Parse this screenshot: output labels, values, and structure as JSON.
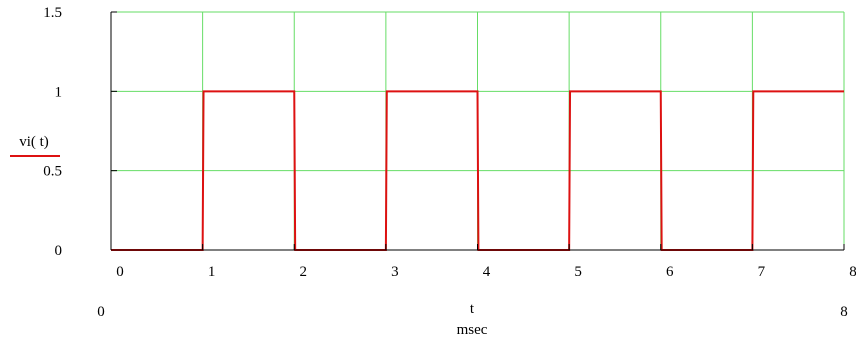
{
  "chart_data": {
    "type": "line",
    "title": "",
    "xlabel": "t",
    "xlabel_unit": "msec",
    "ylabel": "vi( t)",
    "xlim": [
      0,
      8
    ],
    "ylim": [
      0,
      1.5
    ],
    "x_range_labels": [
      "0",
      "8"
    ],
    "x_ticks": [
      0,
      1,
      2,
      3,
      4,
      5,
      6,
      7,
      8
    ],
    "x_tick_labels": [
      "0",
      "1",
      "2",
      "3",
      "4",
      "5",
      "6",
      "7",
      "8"
    ],
    "y_ticks": [
      0,
      0.5,
      1,
      1.5
    ],
    "y_tick_labels": [
      "0",
      "0.5",
      "1",
      "1.5"
    ],
    "grid": true,
    "colors": {
      "grid": "#66dd66",
      "series": "#dd1111",
      "axis": "#000000"
    },
    "series": [
      {
        "name": "vi( t)",
        "x": [
          0,
          1,
          1.01,
          2,
          2.01,
          3,
          3.01,
          4,
          4.01,
          5,
          5.01,
          6,
          6.01,
          7,
          7.01,
          8
        ],
        "y": [
          0,
          0,
          1,
          1,
          0,
          0,
          1,
          1,
          0,
          0,
          1,
          1,
          0,
          0,
          1,
          1
        ]
      }
    ]
  }
}
